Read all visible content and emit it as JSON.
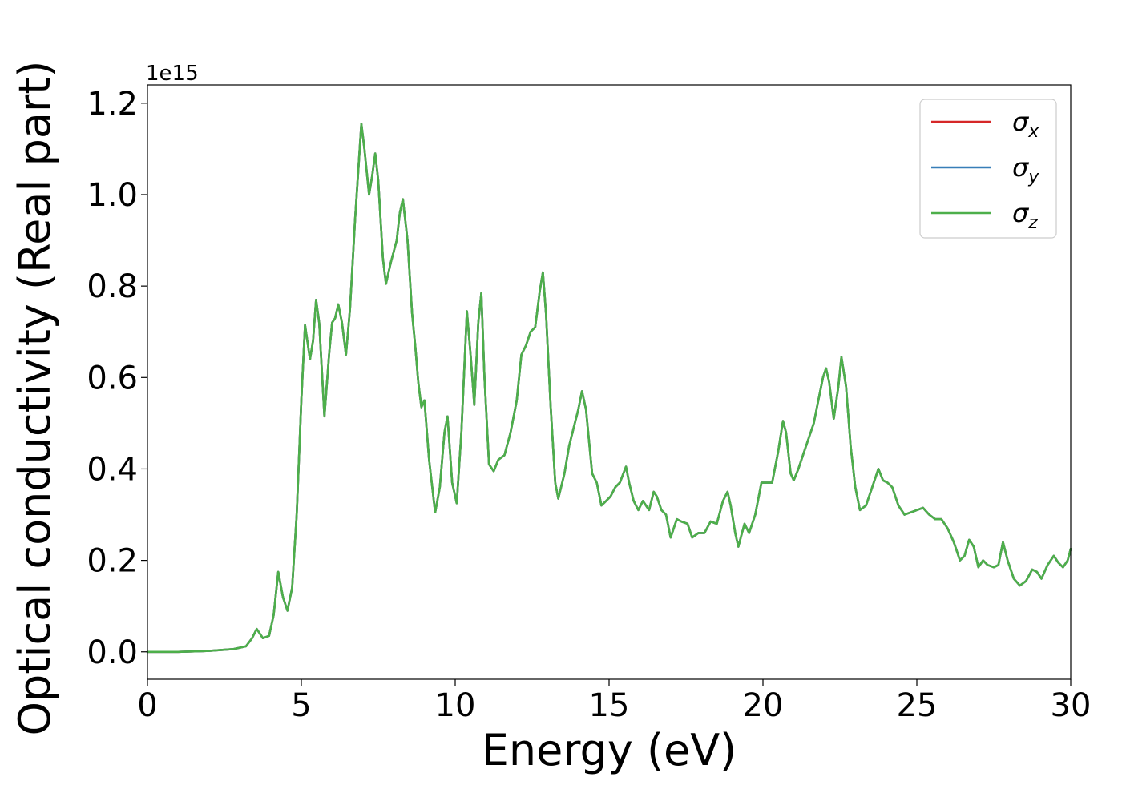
{
  "chart_data": {
    "type": "line",
    "xlabel": "Energy (eV)",
    "ylabel": "Optical conductivity (Real part)",
    "y_offset_text": "1e15",
    "xlim": [
      0,
      30
    ],
    "ylim": [
      -0.06,
      1.24
    ],
    "y_scale_factor": "1e15",
    "x_ticks": [
      0,
      5,
      10,
      15,
      20,
      25,
      30
    ],
    "x_tick_labels": [
      "0",
      "5",
      "10",
      "15",
      "20",
      "25",
      "30"
    ],
    "y_ticks": [
      0.0,
      0.2,
      0.4,
      0.6,
      0.8,
      1.0,
      1.2
    ],
    "y_tick_labels": [
      "0.0",
      "0.2",
      "0.4",
      "0.6",
      "0.8",
      "1.0",
      "1.2"
    ],
    "grid": false,
    "legend_position": "top-right",
    "legend": [
      {
        "symbol": "σ",
        "subscript": "x",
        "color": "#d62728"
      },
      {
        "symbol": "σ",
        "subscript": "y",
        "color": "#377eb8"
      },
      {
        "symbol": "σ",
        "subscript": "z",
        "color": "#4daf4a"
      }
    ],
    "series_points": [
      [
        0,
        0
      ],
      [
        1,
        0.0
      ],
      [
        2,
        0.002
      ],
      [
        2.8,
        0.006
      ],
      [
        3.2,
        0.012
      ],
      [
        3.4,
        0.03
      ],
      [
        3.55,
        0.05
      ],
      [
        3.75,
        0.03
      ],
      [
        3.95,
        0.035
      ],
      [
        4.1,
        0.08
      ],
      [
        4.25,
        0.175
      ],
      [
        4.4,
        0.12
      ],
      [
        4.55,
        0.09
      ],
      [
        4.7,
        0.14
      ],
      [
        4.85,
        0.3
      ],
      [
        5.0,
        0.55
      ],
      [
        5.12,
        0.715
      ],
      [
        5.28,
        0.64
      ],
      [
        5.38,
        0.68
      ],
      [
        5.48,
        0.77
      ],
      [
        5.58,
        0.72
      ],
      [
        5.75,
        0.515
      ],
      [
        5.9,
        0.65
      ],
      [
        6.0,
        0.72
      ],
      [
        6.1,
        0.73
      ],
      [
        6.2,
        0.76
      ],
      [
        6.32,
        0.72
      ],
      [
        6.45,
        0.65
      ],
      [
        6.58,
        0.75
      ],
      [
        6.75,
        0.95
      ],
      [
        6.95,
        1.155
      ],
      [
        7.05,
        1.1
      ],
      [
        7.2,
        1.0
      ],
      [
        7.3,
        1.04
      ],
      [
        7.4,
        1.09
      ],
      [
        7.5,
        1.03
      ],
      [
        7.65,
        0.86
      ],
      [
        7.75,
        0.805
      ],
      [
        7.9,
        0.85
      ],
      [
        8.0,
        0.875
      ],
      [
        8.1,
        0.9
      ],
      [
        8.2,
        0.96
      ],
      [
        8.3,
        0.99
      ],
      [
        8.45,
        0.9
      ],
      [
        8.6,
        0.74
      ],
      [
        8.7,
        0.67
      ],
      [
        8.8,
        0.59
      ],
      [
        8.9,
        0.535
      ],
      [
        9.0,
        0.55
      ],
      [
        9.15,
        0.42
      ],
      [
        9.35,
        0.305
      ],
      [
        9.5,
        0.36
      ],
      [
        9.65,
        0.48
      ],
      [
        9.75,
        0.515
      ],
      [
        9.9,
        0.37
      ],
      [
        10.05,
        0.325
      ],
      [
        10.2,
        0.48
      ],
      [
        10.38,
        0.745
      ],
      [
        10.5,
        0.65
      ],
      [
        10.62,
        0.54
      ],
      [
        10.75,
        0.72
      ],
      [
        10.85,
        0.785
      ],
      [
        10.95,
        0.6
      ],
      [
        11.1,
        0.41
      ],
      [
        11.25,
        0.395
      ],
      [
        11.4,
        0.42
      ],
      [
        11.6,
        0.43
      ],
      [
        11.8,
        0.48
      ],
      [
        12.0,
        0.55
      ],
      [
        12.15,
        0.65
      ],
      [
        12.3,
        0.67
      ],
      [
        12.45,
        0.7
      ],
      [
        12.6,
        0.71
      ],
      [
        12.75,
        0.79
      ],
      [
        12.85,
        0.83
      ],
      [
        12.95,
        0.74
      ],
      [
        13.1,
        0.54
      ],
      [
        13.25,
        0.37
      ],
      [
        13.35,
        0.335
      ],
      [
        13.55,
        0.39
      ],
      [
        13.7,
        0.45
      ],
      [
        13.85,
        0.49
      ],
      [
        14.0,
        0.53
      ],
      [
        14.12,
        0.57
      ],
      [
        14.25,
        0.53
      ],
      [
        14.45,
        0.39
      ],
      [
        14.6,
        0.37
      ],
      [
        14.75,
        0.32
      ],
      [
        14.9,
        0.33
      ],
      [
        15.05,
        0.34
      ],
      [
        15.2,
        0.36
      ],
      [
        15.35,
        0.37
      ],
      [
        15.55,
        0.405
      ],
      [
        15.65,
        0.37
      ],
      [
        15.8,
        0.33
      ],
      [
        15.95,
        0.31
      ],
      [
        16.1,
        0.33
      ],
      [
        16.3,
        0.31
      ],
      [
        16.45,
        0.35
      ],
      [
        16.55,
        0.34
      ],
      [
        16.7,
        0.31
      ],
      [
        16.85,
        0.3
      ],
      [
        17.0,
        0.25
      ],
      [
        17.2,
        0.29
      ],
      [
        17.35,
        0.285
      ],
      [
        17.55,
        0.28
      ],
      [
        17.7,
        0.25
      ],
      [
        17.9,
        0.26
      ],
      [
        18.1,
        0.26
      ],
      [
        18.3,
        0.285
      ],
      [
        18.5,
        0.28
      ],
      [
        18.7,
        0.33
      ],
      [
        18.85,
        0.35
      ],
      [
        18.95,
        0.32
      ],
      [
        19.1,
        0.26
      ],
      [
        19.2,
        0.23
      ],
      [
        19.3,
        0.255
      ],
      [
        19.4,
        0.28
      ],
      [
        19.55,
        0.26
      ],
      [
        19.75,
        0.3
      ],
      [
        19.95,
        0.37
      ],
      [
        20.1,
        0.37
      ],
      [
        20.3,
        0.37
      ],
      [
        20.5,
        0.44
      ],
      [
        20.65,
        0.505
      ],
      [
        20.75,
        0.48
      ],
      [
        20.9,
        0.39
      ],
      [
        21.0,
        0.375
      ],
      [
        21.15,
        0.4
      ],
      [
        21.3,
        0.43
      ],
      [
        21.5,
        0.47
      ],
      [
        21.65,
        0.5
      ],
      [
        21.8,
        0.55
      ],
      [
        21.95,
        0.6
      ],
      [
        22.05,
        0.62
      ],
      [
        22.15,
        0.59
      ],
      [
        22.3,
        0.51
      ],
      [
        22.45,
        0.58
      ],
      [
        22.55,
        0.645
      ],
      [
        22.7,
        0.58
      ],
      [
        22.85,
        0.45
      ],
      [
        23.0,
        0.36
      ],
      [
        23.15,
        0.31
      ],
      [
        23.35,
        0.32
      ],
      [
        23.55,
        0.36
      ],
      [
        23.75,
        0.4
      ],
      [
        23.9,
        0.375
      ],
      [
        24.05,
        0.37
      ],
      [
        24.2,
        0.36
      ],
      [
        24.4,
        0.32
      ],
      [
        24.6,
        0.3
      ],
      [
        24.8,
        0.305
      ],
      [
        25.0,
        0.31
      ],
      [
        25.2,
        0.315
      ],
      [
        25.4,
        0.3
      ],
      [
        25.6,
        0.29
      ],
      [
        25.8,
        0.29
      ],
      [
        26.0,
        0.27
      ],
      [
        26.2,
        0.24
      ],
      [
        26.4,
        0.2
      ],
      [
        26.55,
        0.21
      ],
      [
        26.7,
        0.245
      ],
      [
        26.85,
        0.23
      ],
      [
        27.0,
        0.185
      ],
      [
        27.15,
        0.2
      ],
      [
        27.3,
        0.19
      ],
      [
        27.5,
        0.185
      ],
      [
        27.65,
        0.19
      ],
      [
        27.8,
        0.24
      ],
      [
        27.95,
        0.2
      ],
      [
        28.15,
        0.16
      ],
      [
        28.35,
        0.145
      ],
      [
        28.55,
        0.155
      ],
      [
        28.75,
        0.18
      ],
      [
        28.9,
        0.175
      ],
      [
        29.05,
        0.16
      ],
      [
        29.25,
        0.19
      ],
      [
        29.45,
        0.21
      ],
      [
        29.6,
        0.195
      ],
      [
        29.75,
        0.185
      ],
      [
        29.9,
        0.2
      ],
      [
        30.0,
        0.225
      ]
    ],
    "series_colors": [
      "#d62728",
      "#377eb8",
      "#4daf4a"
    ]
  }
}
